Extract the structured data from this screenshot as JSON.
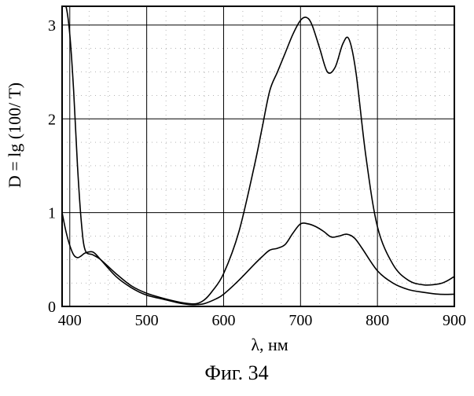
{
  "chart_data": {
    "type": "line",
    "title": "",
    "xlabel": "λ, нм",
    "ylabel": "D = lg (100/ T)",
    "xlim": [
      390,
      900
    ],
    "ylim": [
      0,
      3.2
    ],
    "xticks": [
      400,
      500,
      600,
      700,
      800,
      900
    ],
    "yticks": [
      0,
      1,
      2,
      3
    ],
    "xtick_labels": [
      "400",
      "500",
      "600",
      "700",
      "800",
      "900"
    ],
    "ytick_labels": [
      "0",
      "1",
      "2",
      "3"
    ],
    "grid": true,
    "legend": "none",
    "series": [
      {
        "x": [
          390,
          395,
          400,
          405,
          410,
          415,
          420,
          430,
          440,
          460,
          480,
          500,
          520,
          540,
          555,
          565,
          575,
          585,
          600,
          620,
          640,
          650,
          660,
          670,
          680,
          690,
          700,
          708,
          715,
          725,
          735,
          745,
          755,
          763,
          772,
          785,
          800,
          820,
          840,
          860,
          880,
          890,
          900
        ],
        "y": [
          3.2,
          3.2,
          2.9,
          2.3,
          1.5,
          0.9,
          0.6,
          0.55,
          0.5,
          0.35,
          0.22,
          0.14,
          0.09,
          0.05,
          0.03,
          0.03,
          0.07,
          0.16,
          0.35,
          0.8,
          1.5,
          1.9,
          2.3,
          2.5,
          2.7,
          2.9,
          3.05,
          3.08,
          3.0,
          2.75,
          2.5,
          2.55,
          2.8,
          2.85,
          2.5,
          1.6,
          0.85,
          0.45,
          0.28,
          0.23,
          0.24,
          0.27,
          0.32
        ]
      },
      {
        "x": [
          390,
          395,
          400,
          405,
          410,
          415,
          420,
          430,
          440,
          460,
          480,
          500,
          520,
          540,
          555,
          565,
          575,
          590,
          600,
          620,
          640,
          650,
          660,
          670,
          680,
          690,
          700,
          710,
          720,
          730,
          740,
          750,
          760,
          770,
          780,
          800,
          820,
          840,
          860,
          880,
          900
        ],
        "y": [
          1.0,
          0.8,
          0.65,
          0.55,
          0.52,
          0.54,
          0.57,
          0.58,
          0.5,
          0.32,
          0.2,
          0.12,
          0.08,
          0.04,
          0.02,
          0.02,
          0.03,
          0.08,
          0.13,
          0.28,
          0.45,
          0.53,
          0.6,
          0.62,
          0.66,
          0.78,
          0.88,
          0.88,
          0.85,
          0.8,
          0.74,
          0.75,
          0.77,
          0.73,
          0.62,
          0.38,
          0.25,
          0.18,
          0.15,
          0.13,
          0.13
        ]
      }
    ]
  },
  "caption": "Фиг. 34",
  "colors": {
    "line": "#000000",
    "grid": "#000000",
    "minor_grid": "#888888",
    "background": "#ffffff"
  }
}
